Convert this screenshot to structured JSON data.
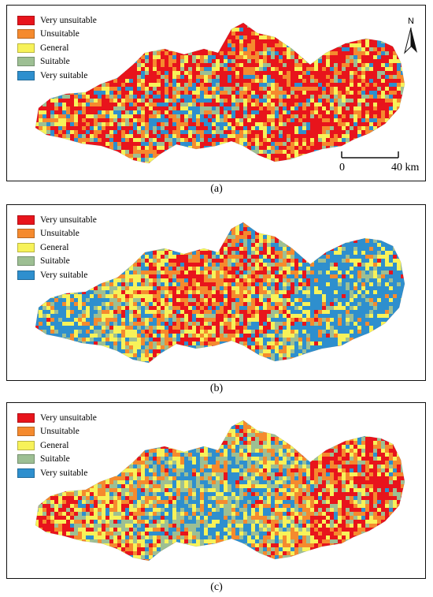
{
  "legend_items": [
    {
      "label": "Very unsuitable",
      "color": "#e8141c"
    },
    {
      "label": "Unsuitable",
      "color": "#f58a2e"
    },
    {
      "label": "General",
      "color": "#f7f259"
    },
    {
      "label": "Suitable",
      "color": "#9dbf93"
    },
    {
      "label": "Very suitable",
      "color": "#2e8fce"
    }
  ],
  "panels": [
    {
      "caption": "(a)",
      "weights": [
        0.42,
        0.22,
        0.16,
        0.1,
        0.1
      ]
    },
    {
      "caption": "(b)",
      "weights": [
        0.12,
        0.18,
        0.22,
        0.14,
        0.34
      ]
    },
    {
      "caption": "(c)",
      "weights": [
        0.24,
        0.2,
        0.24,
        0.16,
        0.16
      ]
    }
  ],
  "north_arrow": {
    "letter": "N"
  },
  "scale_bar": {
    "left_label": "0",
    "right_label": "40 km"
  }
}
